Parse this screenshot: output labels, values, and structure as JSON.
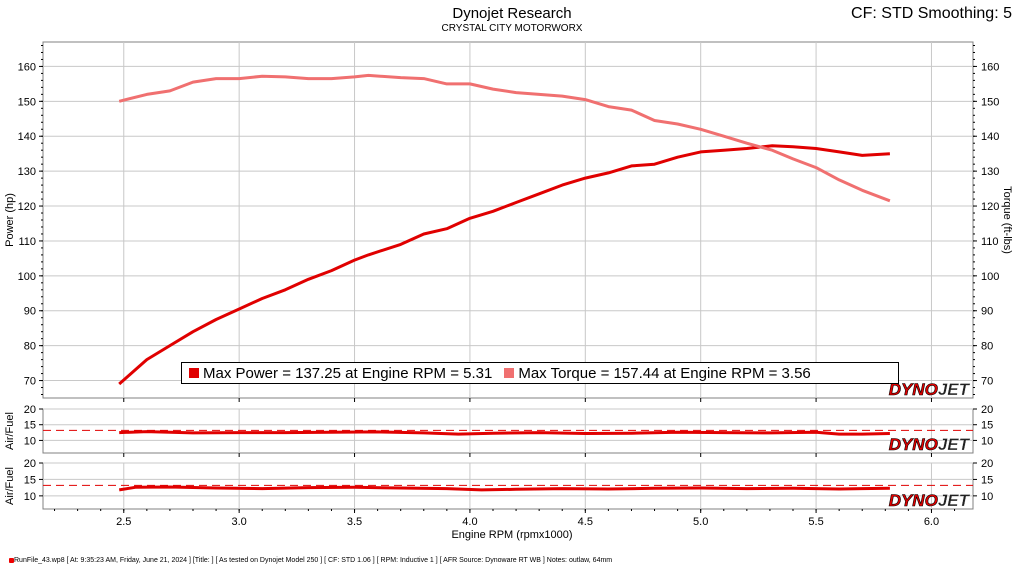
{
  "header": {
    "title": "Dynojet Research",
    "subtitle": "CRYSTAL CITY MOTORWORX",
    "cf_label": "CF: STD Smoothing: 5"
  },
  "legend": {
    "power": "Max Power = 137.25 at Engine RPM = 5.31",
    "torque": "Max Torque = 157.44 at Engine RPM = 3.56"
  },
  "logo": {
    "text_a": "DYNO",
    "text_b": "JET"
  },
  "footer": "RunFile_43.wp8 [ At: 9:35:23 AM, Friday, June 21, 2024 ] [Title: ] [ As tested on Dynojet Model 250 ] [ CF: STD 1.06 ] [ RPM: Inductive 1 ] [ AFR Source: Dynoware RT WB ] Notes: outlaw, 64mm",
  "colors": {
    "power": "#e00000",
    "torque": "#f07070",
    "dashed": "#e00000"
  },
  "chart_data": [
    {
      "type": "line",
      "xlabel": "Engine RPM (rpmx1000)",
      "ylabel": "Power (hp)",
      "y2label": "Torque (ft-lbs)",
      "xlim": [
        2.15,
        6.18
      ],
      "ylim": [
        65,
        167
      ],
      "xticks": [
        "2.5",
        "3.0",
        "3.5",
        "4.0",
        "4.5",
        "5.0",
        "5.5",
        "6.0"
      ],
      "yticks": [
        "70",
        "80",
        "90",
        "100",
        "110",
        "120",
        "130",
        "140",
        "150",
        "160"
      ],
      "series": [
        {
          "name": "Power",
          "x": [
            2.48,
            2.6,
            2.7,
            2.8,
            2.9,
            3.0,
            3.1,
            3.2,
            3.3,
            3.4,
            3.5,
            3.56,
            3.7,
            3.8,
            3.9,
            4.0,
            4.1,
            4.2,
            4.3,
            4.4,
            4.5,
            4.6,
            4.7,
            4.8,
            4.9,
            5.0,
            5.1,
            5.2,
            5.31,
            5.4,
            5.5,
            5.6,
            5.7,
            5.82
          ],
          "values": [
            69,
            76,
            80,
            84,
            87.5,
            90.5,
            93.5,
            96,
            99,
            101.5,
            104.5,
            106,
            109,
            112,
            113.5,
            116.5,
            118.5,
            121,
            123.5,
            126,
            128,
            129.5,
            131.5,
            132,
            134,
            135.5,
            136,
            136.5,
            137.25,
            137,
            136.5,
            135.5,
            134.5,
            135
          ]
        },
        {
          "name": "Torque",
          "x": [
            2.48,
            2.6,
            2.7,
            2.8,
            2.9,
            3.0,
            3.1,
            3.2,
            3.3,
            3.4,
            3.5,
            3.56,
            3.7,
            3.8,
            3.9,
            4.0,
            4.1,
            4.2,
            4.3,
            4.4,
            4.5,
            4.6,
            4.7,
            4.8,
            4.9,
            5.0,
            5.1,
            5.2,
            5.31,
            5.4,
            5.5,
            5.6,
            5.7,
            5.82
          ],
          "values": [
            150,
            152,
            153,
            155.5,
            156.5,
            156.5,
            157.2,
            157,
            156.5,
            156.5,
            157,
            157.44,
            156.8,
            156.5,
            155,
            155,
            153.5,
            152.5,
            152,
            151.5,
            150.5,
            148.5,
            147.5,
            144.5,
            143.5,
            142,
            140,
            138,
            136,
            133.5,
            131,
            127.5,
            124.5,
            121.5
          ]
        }
      ]
    },
    {
      "type": "line",
      "ylabel": "Air/Fuel",
      "ylim": [
        6,
        20
      ],
      "yticks": [
        "10",
        "15",
        "20"
      ],
      "reference": 13.2,
      "series": [
        {
          "x": [
            2.48,
            2.6,
            2.8,
            3.0,
            3.2,
            3.4,
            3.6,
            3.8,
            3.95,
            4.1,
            4.3,
            4.5,
            4.7,
            4.9,
            5.1,
            5.3,
            5.5,
            5.6,
            5.7,
            5.82
          ],
          "values": [
            12.5,
            12.8,
            12.4,
            12.5,
            12.5,
            12.6,
            12.7,
            12.4,
            12.0,
            12.3,
            12.5,
            12.2,
            12.3,
            12.6,
            12.5,
            12.4,
            12.6,
            12.0,
            12.0,
            12.2
          ]
        }
      ]
    },
    {
      "type": "line",
      "ylabel": "Air/Fuel",
      "ylim": [
        6,
        20
      ],
      "yticks": [
        "10",
        "15",
        "20"
      ],
      "reference": 13.2,
      "series": [
        {
          "x": [
            2.48,
            2.55,
            2.7,
            2.9,
            3.1,
            3.3,
            3.5,
            3.7,
            3.9,
            4.05,
            4.2,
            4.4,
            4.6,
            4.8,
            5.0,
            5.2,
            5.4,
            5.6,
            5.7,
            5.82
          ],
          "values": [
            11.8,
            12.6,
            12.7,
            12.4,
            12.2,
            12.5,
            12.6,
            12.4,
            12.2,
            11.8,
            12.0,
            12.2,
            12.1,
            12.3,
            12.4,
            12.2,
            12.3,
            12.1,
            12.2,
            12.3
          ]
        }
      ]
    }
  ]
}
